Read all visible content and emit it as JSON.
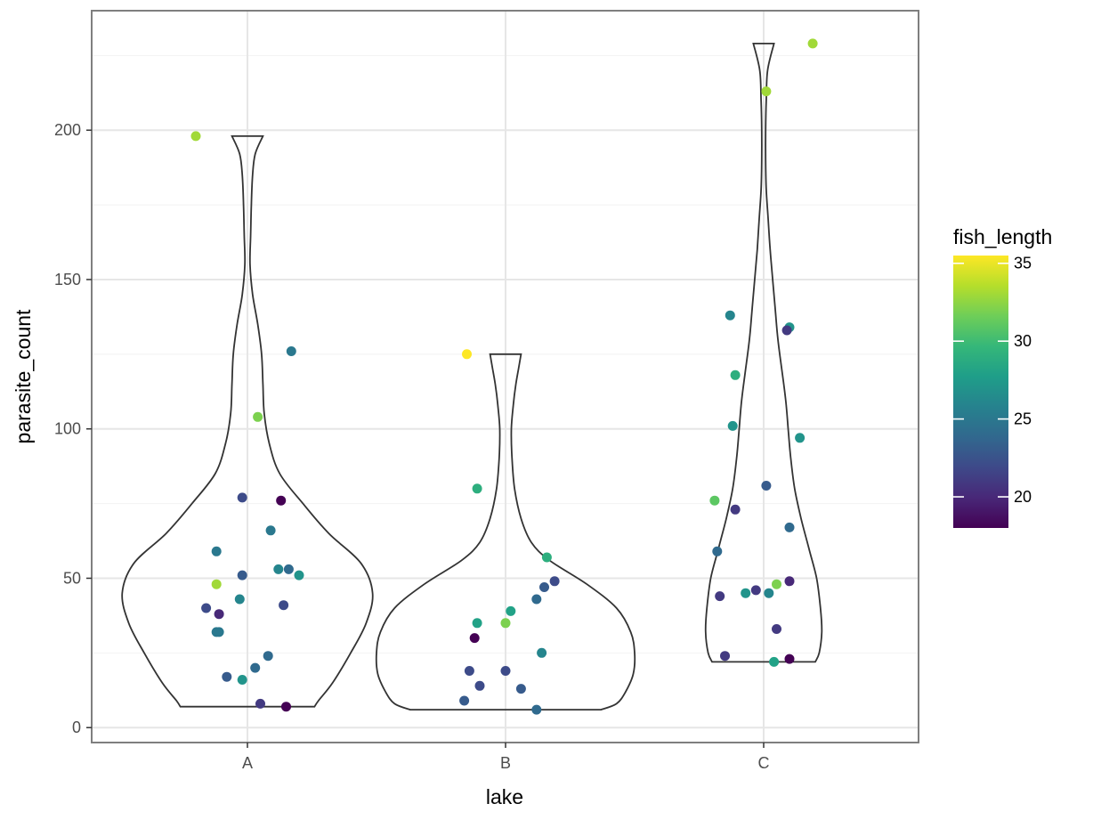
{
  "chart_data": {
    "type": "violin",
    "xlabel": "lake",
    "ylabel": "parasite_count",
    "categories": [
      "A",
      "B",
      "C"
    ],
    "ylim": [
      -5,
      240
    ],
    "yticks": [
      0,
      50,
      100,
      150,
      200
    ],
    "ytick_labels": [
      "0",
      "50",
      "100",
      "150",
      "200"
    ],
    "grid": true,
    "legend": {
      "title": "fish_length",
      "type": "colorbar",
      "placement": "right",
      "range": [
        18,
        35.5
      ],
      "ticks": [
        20,
        25,
        30,
        35
      ],
      "tick_labels": [
        "20",
        "25",
        "30",
        "35"
      ],
      "colors": [
        "#440154",
        "#482878",
        "#3e4989",
        "#31688e",
        "#26828e",
        "#1f9e89",
        "#35b779",
        "#6ece58",
        "#b5de2b",
        "#fde725"
      ]
    },
    "violins": [
      {
        "category": "A",
        "ymin": 7,
        "ymax": 198,
        "profile": [
          [
            7,
            0.52
          ],
          [
            9,
            0.55
          ],
          [
            15,
            0.66
          ],
          [
            25,
            0.8
          ],
          [
            35,
            0.92
          ],
          [
            45,
            0.97
          ],
          [
            55,
            0.88
          ],
          [
            65,
            0.63
          ],
          [
            75,
            0.43
          ],
          [
            85,
            0.25
          ],
          [
            95,
            0.17
          ],
          [
            105,
            0.13
          ],
          [
            115,
            0.12
          ],
          [
            125,
            0.11
          ],
          [
            135,
            0.08
          ],
          [
            145,
            0.04
          ],
          [
            155,
            0.02
          ],
          [
            165,
            0.025
          ],
          [
            175,
            0.03
          ],
          [
            185,
            0.04
          ],
          [
            192,
            0.06
          ],
          [
            198,
            0.12
          ]
        ]
      },
      {
        "category": "B",
        "ymin": 6,
        "ymax": 125,
        "profile": [
          [
            6,
            0.74
          ],
          [
            8,
            0.86
          ],
          [
            12,
            0.93
          ],
          [
            18,
            0.99
          ],
          [
            25,
            1.0
          ],
          [
            32,
            0.97
          ],
          [
            40,
            0.86
          ],
          [
            48,
            0.63
          ],
          [
            56,
            0.34
          ],
          [
            62,
            0.2
          ],
          [
            70,
            0.12
          ],
          [
            80,
            0.07
          ],
          [
            90,
            0.05
          ],
          [
            100,
            0.045
          ],
          [
            108,
            0.06
          ],
          [
            115,
            0.08
          ],
          [
            120,
            0.1
          ],
          [
            125,
            0.12
          ]
        ]
      },
      {
        "category": "C",
        "ymin": 22,
        "ymax": 229,
        "profile": [
          [
            22,
            0.4
          ],
          [
            25,
            0.43
          ],
          [
            32,
            0.45
          ],
          [
            40,
            0.44
          ],
          [
            50,
            0.41
          ],
          [
            60,
            0.35
          ],
          [
            70,
            0.29
          ],
          [
            80,
            0.24
          ],
          [
            90,
            0.21
          ],
          [
            100,
            0.19
          ],
          [
            110,
            0.17
          ],
          [
            120,
            0.14
          ],
          [
            130,
            0.11
          ],
          [
            140,
            0.09
          ],
          [
            150,
            0.07
          ],
          [
            160,
            0.05
          ],
          [
            170,
            0.035
          ],
          [
            180,
            0.02
          ],
          [
            190,
            0.015
          ],
          [
            200,
            0.015
          ],
          [
            210,
            0.02
          ],
          [
            220,
            0.03
          ],
          [
            229,
            0.08
          ]
        ]
      }
    ],
    "points": [
      {
        "lake": "A",
        "jitter": -0.2,
        "y": 198,
        "fish_length": 33
      },
      {
        "lake": "A",
        "jitter": 0.17,
        "y": 126,
        "fish_length": 25
      },
      {
        "lake": "A",
        "jitter": 0.04,
        "y": 104,
        "fish_length": 32
      },
      {
        "lake": "A",
        "jitter": -0.02,
        "y": 77,
        "fish_length": 22
      },
      {
        "lake": "A",
        "jitter": 0.13,
        "y": 76,
        "fish_length": 18
      },
      {
        "lake": "A",
        "jitter": 0.09,
        "y": 66,
        "fish_length": 25
      },
      {
        "lake": "A",
        "jitter": -0.12,
        "y": 59,
        "fish_length": 25
      },
      {
        "lake": "A",
        "jitter": 0.12,
        "y": 53,
        "fish_length": 26
      },
      {
        "lake": "A",
        "jitter": 0.16,
        "y": 53,
        "fish_length": 24
      },
      {
        "lake": "A",
        "jitter": 0.2,
        "y": 51,
        "fish_length": 27
      },
      {
        "lake": "A",
        "jitter": -0.02,
        "y": 51,
        "fish_length": 23
      },
      {
        "lake": "A",
        "jitter": -0.12,
        "y": 48,
        "fish_length": 33
      },
      {
        "lake": "A",
        "jitter": -0.03,
        "y": 43,
        "fish_length": 26
      },
      {
        "lake": "A",
        "jitter": 0.14,
        "y": 41,
        "fish_length": 22
      },
      {
        "lake": "A",
        "jitter": -0.16,
        "y": 40,
        "fish_length": 22
      },
      {
        "lake": "A",
        "jitter": -0.11,
        "y": 38,
        "fish_length": 20
      },
      {
        "lake": "A",
        "jitter": -0.12,
        "y": 32,
        "fish_length": 25
      },
      {
        "lake": "A",
        "jitter": -0.11,
        "y": 32,
        "fish_length": 25
      },
      {
        "lake": "A",
        "jitter": 0.08,
        "y": 24,
        "fish_length": 24
      },
      {
        "lake": "A",
        "jitter": 0.03,
        "y": 20,
        "fish_length": 24
      },
      {
        "lake": "A",
        "jitter": -0.08,
        "y": 17,
        "fish_length": 23
      },
      {
        "lake": "A",
        "jitter": -0.02,
        "y": 16,
        "fish_length": 27
      },
      {
        "lake": "A",
        "jitter": 0.05,
        "y": 8,
        "fish_length": 21
      },
      {
        "lake": "A",
        "jitter": 0.15,
        "y": 7,
        "fish_length": 18
      },
      {
        "lake": "B",
        "jitter": -0.15,
        "y": 125,
        "fish_length": 35.5
      },
      {
        "lake": "B",
        "jitter": -0.11,
        "y": 80,
        "fish_length": 29
      },
      {
        "lake": "B",
        "jitter": 0.16,
        "y": 57,
        "fish_length": 29
      },
      {
        "lake": "B",
        "jitter": 0.19,
        "y": 49,
        "fish_length": 22
      },
      {
        "lake": "B",
        "jitter": 0.15,
        "y": 47,
        "fish_length": 23
      },
      {
        "lake": "B",
        "jitter": 0.12,
        "y": 43,
        "fish_length": 24
      },
      {
        "lake": "B",
        "jitter": 0.02,
        "y": 39,
        "fish_length": 28
      },
      {
        "lake": "B",
        "jitter": -0.11,
        "y": 35,
        "fish_length": 28
      },
      {
        "lake": "B",
        "jitter": 0.0,
        "y": 35,
        "fish_length": 32
      },
      {
        "lake": "B",
        "jitter": -0.12,
        "y": 30,
        "fish_length": 18
      },
      {
        "lake": "B",
        "jitter": 0.14,
        "y": 25,
        "fish_length": 26
      },
      {
        "lake": "B",
        "jitter": -0.14,
        "y": 19,
        "fish_length": 22
      },
      {
        "lake": "B",
        "jitter": 0.0,
        "y": 19,
        "fish_length": 22
      },
      {
        "lake": "B",
        "jitter": -0.1,
        "y": 14,
        "fish_length": 22
      },
      {
        "lake": "B",
        "jitter": 0.06,
        "y": 13,
        "fish_length": 23
      },
      {
        "lake": "B",
        "jitter": -0.16,
        "y": 9,
        "fish_length": 23
      },
      {
        "lake": "B",
        "jitter": 0.12,
        "y": 6,
        "fish_length": 24
      },
      {
        "lake": "C",
        "jitter": 0.19,
        "y": 229,
        "fish_length": 33
      },
      {
        "lake": "C",
        "jitter": 0.01,
        "y": 213,
        "fish_length": 33
      },
      {
        "lake": "C",
        "jitter": -0.13,
        "y": 138,
        "fish_length": 26
      },
      {
        "lake": "C",
        "jitter": 0.1,
        "y": 134,
        "fish_length": 27
      },
      {
        "lake": "C",
        "jitter": 0.09,
        "y": 133,
        "fish_length": 21
      },
      {
        "lake": "C",
        "jitter": -0.11,
        "y": 118,
        "fish_length": 29
      },
      {
        "lake": "C",
        "jitter": -0.12,
        "y": 101,
        "fish_length": 27
      },
      {
        "lake": "C",
        "jitter": 0.14,
        "y": 97,
        "fish_length": 27
      },
      {
        "lake": "C",
        "jitter": 0.01,
        "y": 81,
        "fish_length": 23
      },
      {
        "lake": "C",
        "jitter": -0.19,
        "y": 76,
        "fish_length": 31
      },
      {
        "lake": "C",
        "jitter": -0.11,
        "y": 73,
        "fish_length": 21
      },
      {
        "lake": "C",
        "jitter": 0.1,
        "y": 67,
        "fish_length": 24
      },
      {
        "lake": "C",
        "jitter": -0.18,
        "y": 59,
        "fish_length": 24
      },
      {
        "lake": "C",
        "jitter": 0.1,
        "y": 49,
        "fish_length": 20
      },
      {
        "lake": "C",
        "jitter": 0.05,
        "y": 48,
        "fish_length": 32
      },
      {
        "lake": "C",
        "jitter": -0.03,
        "y": 46,
        "fish_length": 21
      },
      {
        "lake": "C",
        "jitter": -0.07,
        "y": 45,
        "fish_length": 27
      },
      {
        "lake": "C",
        "jitter": 0.02,
        "y": 45,
        "fish_length": 26
      },
      {
        "lake": "C",
        "jitter": -0.17,
        "y": 44,
        "fish_length": 21
      },
      {
        "lake": "C",
        "jitter": 0.05,
        "y": 33,
        "fish_length": 21
      },
      {
        "lake": "C",
        "jitter": -0.15,
        "y": 24,
        "fish_length": 21
      },
      {
        "lake": "C",
        "jitter": 0.04,
        "y": 22,
        "fish_length": 28
      },
      {
        "lake": "C",
        "jitter": 0.1,
        "y": 23,
        "fish_length": 18
      }
    ]
  }
}
